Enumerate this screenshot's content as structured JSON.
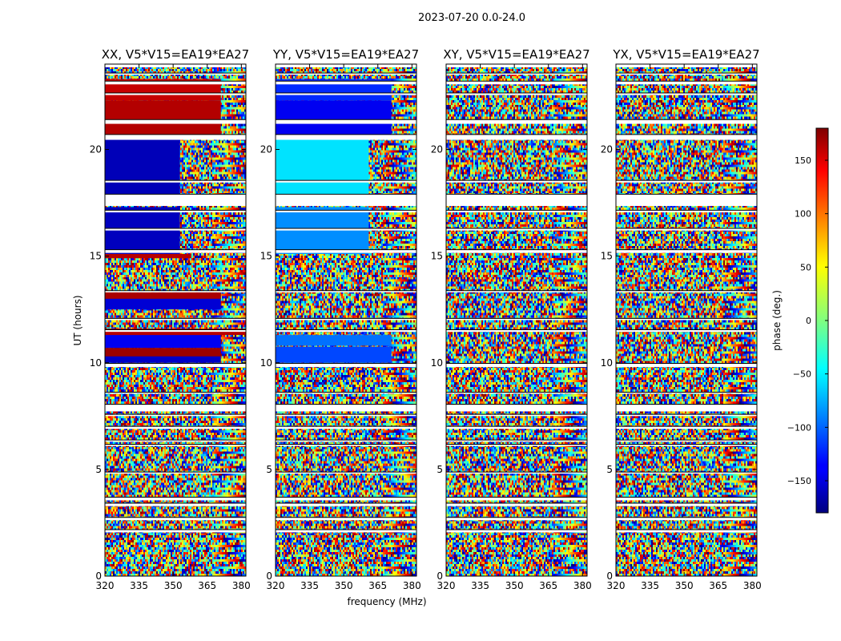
{
  "title": "2023-07-20 0.0-24.0",
  "chart_data": {
    "type": "heatmap",
    "title": "2023-07-20 0.0-24.0",
    "xlabel": "frequency (MHz)",
    "ylabel": "UT (hours)",
    "xlim": [
      320,
      382
    ],
    "ylim": [
      0,
      24
    ],
    "xticks": [
      320,
      335,
      350,
      365,
      380
    ],
    "yticks": [
      0,
      5,
      10,
      15,
      20
    ],
    "panels": [
      {
        "label": "XX, V5*V15=EA19*EA27",
        "coherent_regions": [
          {
            "y": [
              10.0,
              10.35
            ],
            "x": [
              320,
              371
            ],
            "phase": -155
          },
          {
            "y": [
              10.3,
              10.7
            ],
            "x": [
              320,
              371
            ],
            "phase": 170
          },
          {
            "y": [
              10.7,
              11.4
            ],
            "x": [
              320,
              371
            ],
            "phase": -140
          },
          {
            "y": [
              11.3,
              11.6
            ],
            "x": [
              320,
              382
            ],
            "phase": 160
          },
          {
            "y": [
              12.5,
              13.15
            ],
            "x": [
              320,
              371
            ],
            "phase": -150
          },
          {
            "y": [
              13.0,
              13.3
            ],
            "x": [
              320,
              371
            ],
            "phase": 165
          },
          {
            "y": [
              14.9,
              15.1
            ],
            "x": [
              320,
              358
            ],
            "phase": 160
          },
          {
            "y": [
              15.1,
              17.3
            ],
            "x": [
              320,
              353
            ],
            "phase": -158
          },
          {
            "y": [
              17.9,
              20.5
            ],
            "x": [
              320,
              353
            ],
            "phase": -160
          },
          {
            "y": [
              20.7,
              22.3
            ],
            "x": [
              320,
              371
            ],
            "phase": 162
          },
          {
            "y": [
              22.3,
              23.3
            ],
            "x": [
              320,
              371
            ],
            "phase": 155
          }
        ]
      },
      {
        "label": "YY, V5*V15=EA19*EA27",
        "coherent_regions": [
          {
            "y": [
              10.0,
              10.75
            ],
            "x": [
              320,
              371
            ],
            "phase": -110
          },
          {
            "y": [
              10.8,
              11.3
            ],
            "x": [
              320,
              371
            ],
            "phase": -95
          },
          {
            "y": [
              15.1,
              17.3
            ],
            "x": [
              320,
              361
            ],
            "phase": -85
          },
          {
            "y": [
              17.9,
              20.5
            ],
            "x": [
              320,
              361
            ],
            "phase": -55
          },
          {
            "y": [
              20.7,
              22.3
            ],
            "x": [
              320,
              371
            ],
            "phase": -140
          },
          {
            "y": [
              22.3,
              23.3
            ],
            "x": [
              320,
              371
            ],
            "phase": -120
          }
        ]
      },
      {
        "label": "XY, V5*V15=EA19*EA27",
        "coherent_regions": []
      },
      {
        "label": "YX, V5*V15=EA19*EA27",
        "coherent_regions": []
      }
    ],
    "flagged_ut_ranges": [
      [
        2.05,
        2.18
      ],
      [
        2.62,
        2.75
      ],
      [
        3.28,
        3.42
      ],
      [
        3.55,
        3.7
      ],
      [
        4.8,
        4.88
      ],
      [
        6.1,
        6.18
      ],
      [
        6.3,
        6.38
      ],
      [
        6.9,
        7.02
      ],
      [
        7.5,
        7.58
      ],
      [
        7.72,
        8.05
      ],
      [
        8.55,
        8.62
      ],
      [
        9.8,
        9.97
      ],
      [
        11.45,
        11.55
      ],
      [
        12.0,
        12.08
      ],
      [
        13.3,
        13.38
      ],
      [
        15.15,
        15.3
      ],
      [
        16.2,
        16.3
      ],
      [
        17.05,
        17.15
      ],
      [
        17.35,
        17.9
      ],
      [
        18.45,
        18.55
      ],
      [
        20.45,
        20.7
      ],
      [
        21.2,
        21.4
      ],
      [
        22.55,
        22.65
      ],
      [
        23.05,
        23.2
      ],
      [
        23.5,
        23.58
      ],
      [
        23.85,
        24.0
      ]
    ],
    "colorbar": {
      "label": "phase (deg.)",
      "range": [
        -180,
        180
      ],
      "ticks": [
        -150,
        -100,
        -50,
        0,
        50,
        100,
        150
      ],
      "colormap": "jet"
    }
  }
}
